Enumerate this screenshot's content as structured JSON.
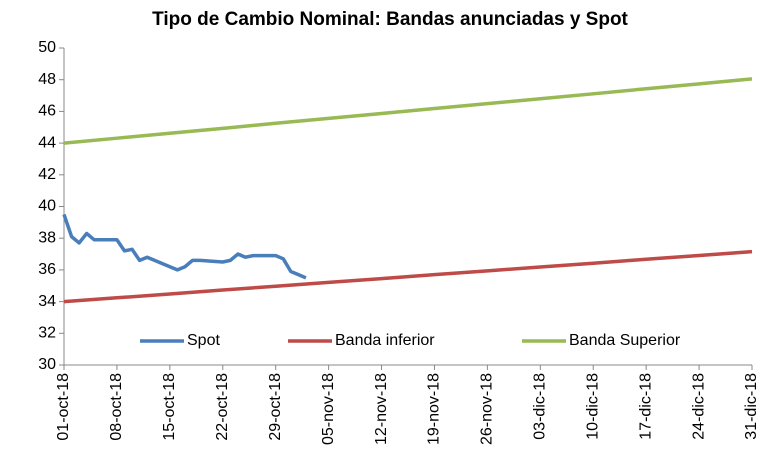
{
  "chart_data": {
    "type": "line",
    "title": "Tipo de Cambio Nominal: Bandas anunciadas y Spot",
    "xlim": [
      "2018-10-01",
      "2018-12-31"
    ],
    "xticks": [
      {
        "value": "2018-10-01",
        "label": "01-oct-18"
      },
      {
        "value": "2018-10-08",
        "label": "08-oct-18"
      },
      {
        "value": "2018-10-15",
        "label": "15-oct-18"
      },
      {
        "value": "2018-10-22",
        "label": "22-oct-18"
      },
      {
        "value": "2018-10-29",
        "label": "29-oct-18"
      },
      {
        "value": "2018-11-05",
        "label": "05-nov-18"
      },
      {
        "value": "2018-11-12",
        "label": "12-nov-18"
      },
      {
        "value": "2018-11-19",
        "label": "19-nov-18"
      },
      {
        "value": "2018-11-26",
        "label": "26-nov-18"
      },
      {
        "value": "2018-12-03",
        "label": "03-dic-18"
      },
      {
        "value": "2018-12-10",
        "label": "10-dic-18"
      },
      {
        "value": "2018-12-17",
        "label": "17-dic-18"
      },
      {
        "value": "2018-12-24",
        "label": "24-dic-18"
      },
      {
        "value": "2018-12-31",
        "label": "31-dic-18"
      }
    ],
    "ylim": [
      30,
      50
    ],
    "yticks": [
      30,
      32,
      34,
      36,
      38,
      40,
      42,
      44,
      46,
      48,
      50
    ],
    "grid": false,
    "legend": "bottom",
    "series": [
      {
        "name": "Spot",
        "color": "#4a7ebb",
        "x": [
          "2018-10-01",
          "2018-10-02",
          "2018-10-03",
          "2018-10-04",
          "2018-10-05",
          "2018-10-08",
          "2018-10-09",
          "2018-10-10",
          "2018-10-11",
          "2018-10-12",
          "2018-10-15",
          "2018-10-16",
          "2018-10-17",
          "2018-10-18",
          "2018-10-19",
          "2018-10-22",
          "2018-10-23",
          "2018-10-24",
          "2018-10-25",
          "2018-10-26",
          "2018-10-29",
          "2018-10-30",
          "2018-10-31",
          "2018-11-01",
          "2018-11-02"
        ],
        "values": [
          39.5,
          38.1,
          37.7,
          38.3,
          37.9,
          37.9,
          37.2,
          37.3,
          36.6,
          36.8,
          36.2,
          36.0,
          36.2,
          36.6,
          36.6,
          36.5,
          36.6,
          37.0,
          36.8,
          36.9,
          36.9,
          36.7,
          35.9,
          35.7,
          35.5
        ]
      },
      {
        "name": "Banda inferior",
        "color": "#be4b48",
        "x": [
          "2018-10-01",
          "2018-10-08",
          "2018-10-15",
          "2018-10-22",
          "2018-10-29",
          "2018-11-05",
          "2018-11-12",
          "2018-11-19",
          "2018-11-26",
          "2018-12-03",
          "2018-12-10",
          "2018-12-17",
          "2018-12-24",
          "2018-12-31"
        ],
        "values": [
          34.0,
          34.24,
          34.48,
          34.73,
          34.97,
          35.21,
          35.45,
          35.7,
          35.94,
          36.18,
          36.42,
          36.67,
          36.91,
          37.15
        ]
      },
      {
        "name": "Banda Superior",
        "color": "#98b954",
        "x": [
          "2018-10-01",
          "2018-10-08",
          "2018-10-15",
          "2018-10-22",
          "2018-10-29",
          "2018-11-05",
          "2018-11-12",
          "2018-11-19",
          "2018-11-26",
          "2018-12-03",
          "2018-12-10",
          "2018-12-17",
          "2018-12-24",
          "2018-12-31"
        ],
        "values": [
          44.0,
          44.31,
          44.62,
          44.93,
          45.25,
          45.56,
          45.87,
          46.18,
          46.49,
          46.8,
          47.11,
          47.43,
          47.74,
          48.05
        ]
      }
    ]
  }
}
